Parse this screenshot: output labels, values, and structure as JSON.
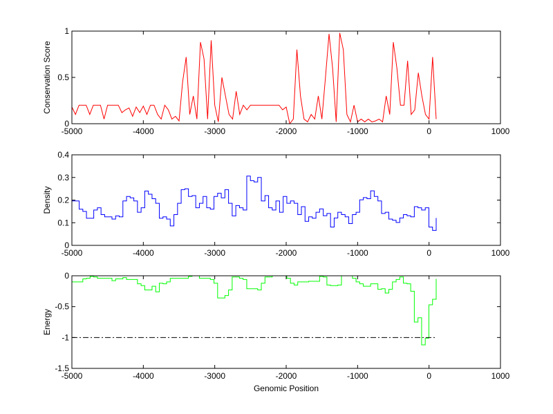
{
  "chart_data": [
    {
      "type": "line",
      "ylabel": "Conservation Score",
      "xlabel": "",
      "xlim": [
        -5000,
        1000
      ],
      "ylim": [
        0,
        1
      ],
      "xticks": [
        -5000,
        -4000,
        -3000,
        -2000,
        -1000,
        0,
        1000
      ],
      "yticks": [
        0,
        0.5,
        1
      ],
      "ytick_labels": [
        "0",
        "0.5",
        "1"
      ],
      "grid": false,
      "series": [
        {
          "name": "conservation",
          "color": "#ff0000",
          "step": false,
          "x_range": [
            -5000,
            100
          ],
          "values": [
            0.18,
            0.1,
            0.2,
            0.2,
            0.2,
            0.1,
            0.2,
            0.2,
            0.2,
            0.05,
            0.2,
            0.2,
            0.2,
            0.2,
            0.12,
            0.15,
            0.17,
            0.08,
            0.18,
            0.12,
            0.19,
            0.1,
            0.2,
            0.2,
            0.1,
            0.05,
            0.2,
            0.15,
            0.05,
            0.08,
            0.03,
            0.45,
            0.72,
            0.1,
            0.3,
            0.05,
            0.88,
            0.7,
            0.05,
            0.9,
            0.2,
            0.02,
            0.5,
            0.3,
            0.1,
            0.05,
            0.35,
            0.1,
            0.2,
            0.15,
            0.2,
            0.2,
            0.2,
            0.2,
            0.2,
            0.2,
            0.2,
            0.2,
            0.2,
            0.15,
            0.18,
            0.0,
            0.05,
            0.8,
            0.3,
            0.05,
            0.02,
            0.1,
            0.05,
            0.3,
            0.05,
            0.5,
            0.97,
            0.6,
            0.02,
            0.98,
            0.8,
            0.1,
            0.02,
            0.2,
            0.02,
            0.05,
            0.02,
            0.05,
            0.02,
            0.03,
            0.05,
            0.02,
            0.3,
            0.1,
            0.88,
            0.6,
            0.2,
            0.2,
            0.68,
            0.1,
            0.15,
            0.55,
            0.3,
            0.1,
            0.05,
            0.72,
            0.05
          ]
        }
      ]
    },
    {
      "type": "line",
      "ylabel": "Density",
      "xlabel": "",
      "xlim": [
        -5000,
        1000
      ],
      "ylim": [
        0,
        0.4
      ],
      "xticks": [
        -5000,
        -4000,
        -3000,
        -2000,
        -1000,
        0,
        1000
      ],
      "yticks": [
        0,
        0.1,
        0.2,
        0.3,
        0.4
      ],
      "ytick_labels": [
        "0",
        "0.1",
        "0.2",
        "0.3",
        "0.4"
      ],
      "grid": false,
      "series": [
        {
          "name": "density",
          "color": "#0000ff",
          "step": true,
          "x_range": [
            -5000,
            100
          ],
          "values": [
            0.196,
            0.196,
            0.16,
            0.15,
            0.12,
            0.12,
            0.156,
            0.166,
            0.136,
            0.126,
            0.126,
            0.116,
            0.13,
            0.126,
            0.196,
            0.216,
            0.21,
            0.196,
            0.146,
            0.166,
            0.24,
            0.226,
            0.206,
            0.186,
            0.12,
            0.126,
            0.116,
            0.086,
            0.136,
            0.186,
            0.246,
            0.25,
            0.216,
            0.22,
            0.166,
            0.186,
            0.216,
            0.166,
            0.16,
            0.216,
            0.23,
            0.21,
            0.246,
            0.186,
            0.13,
            0.176,
            0.166,
            0.156,
            0.306,
            0.286,
            0.28,
            0.3,
            0.196,
            0.22,
            0.166,
            0.156,
            0.196,
            0.146,
            0.216,
            0.186,
            0.196,
            0.186,
            0.136,
            0.171,
            0.106,
            0.126,
            0.12,
            0.146,
            0.161,
            0.131,
            0.141,
            0.081,
            0.121,
            0.146,
            0.136,
            0.126,
            0.096,
            0.136,
            0.146,
            0.201,
            0.211,
            0.206,
            0.241,
            0.216,
            0.196,
            0.141,
            0.146,
            0.116,
            0.111,
            0.101,
            0.121,
            0.136,
            0.131,
            0.126,
            0.171,
            0.166,
            0.156,
            0.166,
            0.081,
            0.066,
            0.121
          ]
        }
      ]
    },
    {
      "type": "line",
      "ylabel": "Energy",
      "xlabel": "Genomic Position",
      "xlim": [
        -5000,
        1000
      ],
      "ylim": [
        -1.5,
        0
      ],
      "xticks": [
        -5000,
        -4000,
        -3000,
        -2000,
        -1000,
        0,
        1000
      ],
      "yticks": [
        -1.5,
        -1,
        -0.5,
        0
      ],
      "ytick_labels": [
        "-1.5",
        "-1",
        "-0.5",
        "0"
      ],
      "grid": false,
      "series": [
        {
          "name": "energy",
          "color": "#00ff00",
          "step": true,
          "x_range": [
            -5000,
            100
          ],
          "values": [
            -0.1,
            -0.1,
            -0.1,
            -0.05,
            -0.04,
            -0.01,
            -0.02,
            -0.04,
            -0.04,
            -0.04,
            -0.04,
            -0.08,
            -0.05,
            -0.05,
            -0.03,
            -0.06,
            -0.06,
            -0.06,
            -0.13,
            -0.16,
            -0.23,
            -0.23,
            -0.17,
            -0.26,
            -0.12,
            -0.13,
            -0.1,
            -0.04,
            -0.04,
            -0.04,
            -0.04,
            -0.04,
            -0.01,
            0,
            0,
            -0.04,
            -0.04,
            -0.04,
            -0.06,
            -0.12,
            -0.36,
            -0.36,
            -0.32,
            -0.23,
            -0.02,
            -0.02,
            -0.04,
            -0.06,
            -0.21,
            -0.21,
            -0.21,
            -0.23,
            -0.12,
            -0.02,
            -0.02,
            0,
            0,
            0,
            0,
            -0.04,
            -0.12,
            -0.15,
            -0.1,
            -0.1,
            -0.1,
            -0.09,
            -0.09,
            -0.09,
            -0.01,
            -0.02,
            -0.15,
            -0.16,
            -0.16,
            -0.15,
            0,
            0,
            0,
            -0.04,
            -0.1,
            -0.13,
            -0.17,
            -0.17,
            -0.13,
            -0.13,
            -0.22,
            -0.21,
            -0.28,
            -0.22,
            -0.1,
            -0.06,
            -0.02,
            -0.12,
            -0.13,
            -0.25,
            -0.75,
            -0.68,
            -1.12,
            -1.01,
            -0.47,
            -0.38,
            -0.05
          ]
        },
        {
          "name": "threshold",
          "color": "#000000",
          "dash": "dashdot",
          "step": false,
          "x_range": [
            -5000,
            100
          ],
          "values": [
            -1,
            -1
          ]
        }
      ]
    }
  ]
}
